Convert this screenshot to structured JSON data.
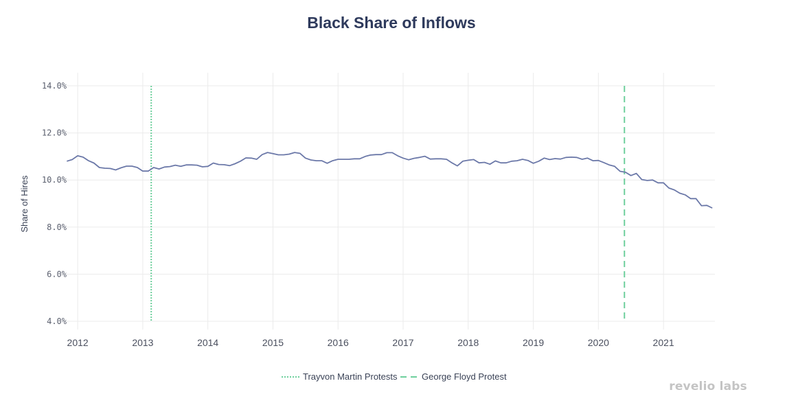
{
  "chart_data": {
    "type": "line",
    "title": "Black Share of Inflows",
    "ylabel": "Share of Hires",
    "xlabel": "",
    "ylim": [
      4.0,
      14.0
    ],
    "yticks": [
      4.0,
      6.0,
      8.0,
      10.0,
      12.0,
      14.0
    ],
    "ytick_labels": [
      "4.0%",
      "6.0%",
      "8.0%",
      "10.0%",
      "12.0%",
      "14.0%"
    ],
    "xlim": [
      2011.83,
      2021.79
    ],
    "xticks": [
      2012,
      2013,
      2014,
      2015,
      2016,
      2017,
      2018,
      2019,
      2020,
      2021
    ],
    "xtick_labels": [
      "2012",
      "2013",
      "2014",
      "2015",
      "2016",
      "2017",
      "2018",
      "2019",
      "2020",
      "2021"
    ],
    "grid": true,
    "legend_position": "bottom-center",
    "series": [
      {
        "name": "",
        "color": "#6b78a8",
        "start": "2011-11",
        "frequency": "monthly",
        "values": [
          10.8,
          10.87,
          11.03,
          10.97,
          10.82,
          10.72,
          10.53,
          10.5,
          10.49,
          10.43,
          10.52,
          10.59,
          10.59,
          10.53,
          10.38,
          10.38,
          10.53,
          10.47,
          10.55,
          10.57,
          10.63,
          10.58,
          10.64,
          10.64,
          10.63,
          10.56,
          10.58,
          10.72,
          10.66,
          10.65,
          10.61,
          10.69,
          10.8,
          10.94,
          10.93,
          10.88,
          11.08,
          11.17,
          11.12,
          11.07,
          11.07,
          11.1,
          11.17,
          11.13,
          10.93,
          10.85,
          10.82,
          10.82,
          10.71,
          10.82,
          10.88,
          10.88,
          10.88,
          10.9,
          10.9,
          11.0,
          11.06,
          11.08,
          11.08,
          11.16,
          11.16,
          11.03,
          10.93,
          10.86,
          10.92,
          10.96,
          11.01,
          10.89,
          10.9,
          10.9,
          10.88,
          10.73,
          10.6,
          10.8,
          10.84,
          10.87,
          10.73,
          10.75,
          10.67,
          10.81,
          10.73,
          10.73,
          10.8,
          10.82,
          10.88,
          10.83,
          10.71,
          10.8,
          10.93,
          10.87,
          10.91,
          10.89,
          10.96,
          10.97,
          10.96,
          10.88,
          10.93,
          10.82,
          10.83,
          10.74,
          10.64,
          10.58,
          10.37,
          10.33,
          10.19,
          10.28,
          10.02,
          9.98,
          10.0,
          9.88,
          9.88,
          9.66,
          9.58,
          9.44,
          9.37,
          9.21,
          9.21,
          8.91,
          8.92,
          8.81
        ]
      }
    ],
    "events": [
      {
        "name": "Trayvon Martin Protests",
        "x": 2013.13,
        "style": "dotted",
        "color": "#6dcf9c"
      },
      {
        "name": "George Floyd Protest",
        "x": 2020.4,
        "style": "dashed",
        "color": "#6dcf9c"
      }
    ]
  },
  "branding": {
    "watermark": "revelio labs"
  }
}
